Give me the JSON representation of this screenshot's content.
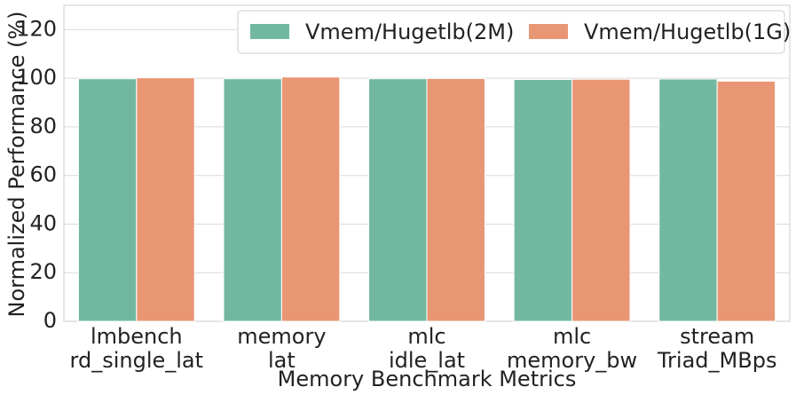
{
  "chart_data": {
    "type": "bar",
    "ylabel": "Normalized Performance (%)",
    "xlabel": "Memory Benchmark Metrics",
    "categories": [
      [
        "lmbench",
        "rd_single_lat"
      ],
      [
        "memory",
        "lat"
      ],
      [
        "mlc",
        "idle_lat"
      ],
      [
        "mlc",
        "memory_bw"
      ],
      [
        "stream",
        "Triad_MBps"
      ]
    ],
    "series": [
      {
        "name": "Vmem/Hugetlb(2M)",
        "color": "#72b8a1",
        "values": [
          99.8,
          99.8,
          99.8,
          99.5,
          99.7
        ]
      },
      {
        "name": "Vmem/Hugetlb(1G)",
        "color": "#e99675",
        "values": [
          100.2,
          100.5,
          99.9,
          99.6,
          98.8
        ]
      }
    ],
    "ylim": [
      0,
      130
    ],
    "yticks": [
      0,
      20,
      40,
      60,
      80,
      100,
      120
    ],
    "grid": true,
    "legend": "upper right"
  }
}
